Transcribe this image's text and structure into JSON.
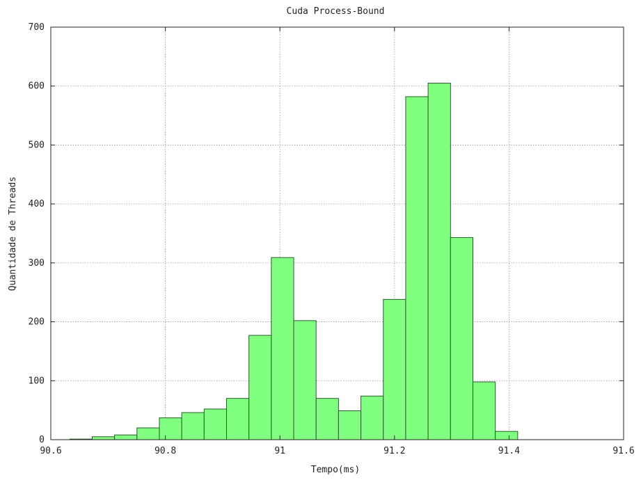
{
  "chart_data": {
    "type": "bar",
    "title": "Cuda Process-Bound",
    "xlabel": "Tempo(ms)",
    "ylabel": "Quantidade de Threads",
    "xlim": [
      90.6,
      91.6
    ],
    "ylim": [
      0,
      700
    ],
    "xticks": [
      "90.6",
      "90.8",
      "91",
      "91.2",
      "91.4",
      "91.6"
    ],
    "yticks": [
      "0",
      "100",
      "200",
      "300",
      "400",
      "500",
      "600",
      "700"
    ],
    "grid": true,
    "bar_color": "#80ff80",
    "bar_edge_color": "#2a5a2a",
    "bin_width": 0.0391,
    "bins": [
      {
        "x_start": 90.6331,
        "value": 1
      },
      {
        "x_start": 90.6722,
        "value": 5
      },
      {
        "x_start": 90.7113,
        "value": 8
      },
      {
        "x_start": 90.7504,
        "value": 20
      },
      {
        "x_start": 90.7895,
        "value": 37
      },
      {
        "x_start": 90.8286,
        "value": 46
      },
      {
        "x_start": 90.8677,
        "value": 52
      },
      {
        "x_start": 90.9068,
        "value": 70
      },
      {
        "x_start": 90.9459,
        "value": 177
      },
      {
        "x_start": 90.985,
        "value": 309
      },
      {
        "x_start": 91.0241,
        "value": 202
      },
      {
        "x_start": 91.0632,
        "value": 70
      },
      {
        "x_start": 91.1023,
        "value": 49
      },
      {
        "x_start": 91.1414,
        "value": 74
      },
      {
        "x_start": 91.1805,
        "value": 238
      },
      {
        "x_start": 91.2196,
        "value": 582
      },
      {
        "x_start": 91.2587,
        "value": 605
      },
      {
        "x_start": 91.2978,
        "value": 343
      },
      {
        "x_start": 91.3369,
        "value": 98
      },
      {
        "x_start": 91.376,
        "value": 14
      }
    ]
  }
}
